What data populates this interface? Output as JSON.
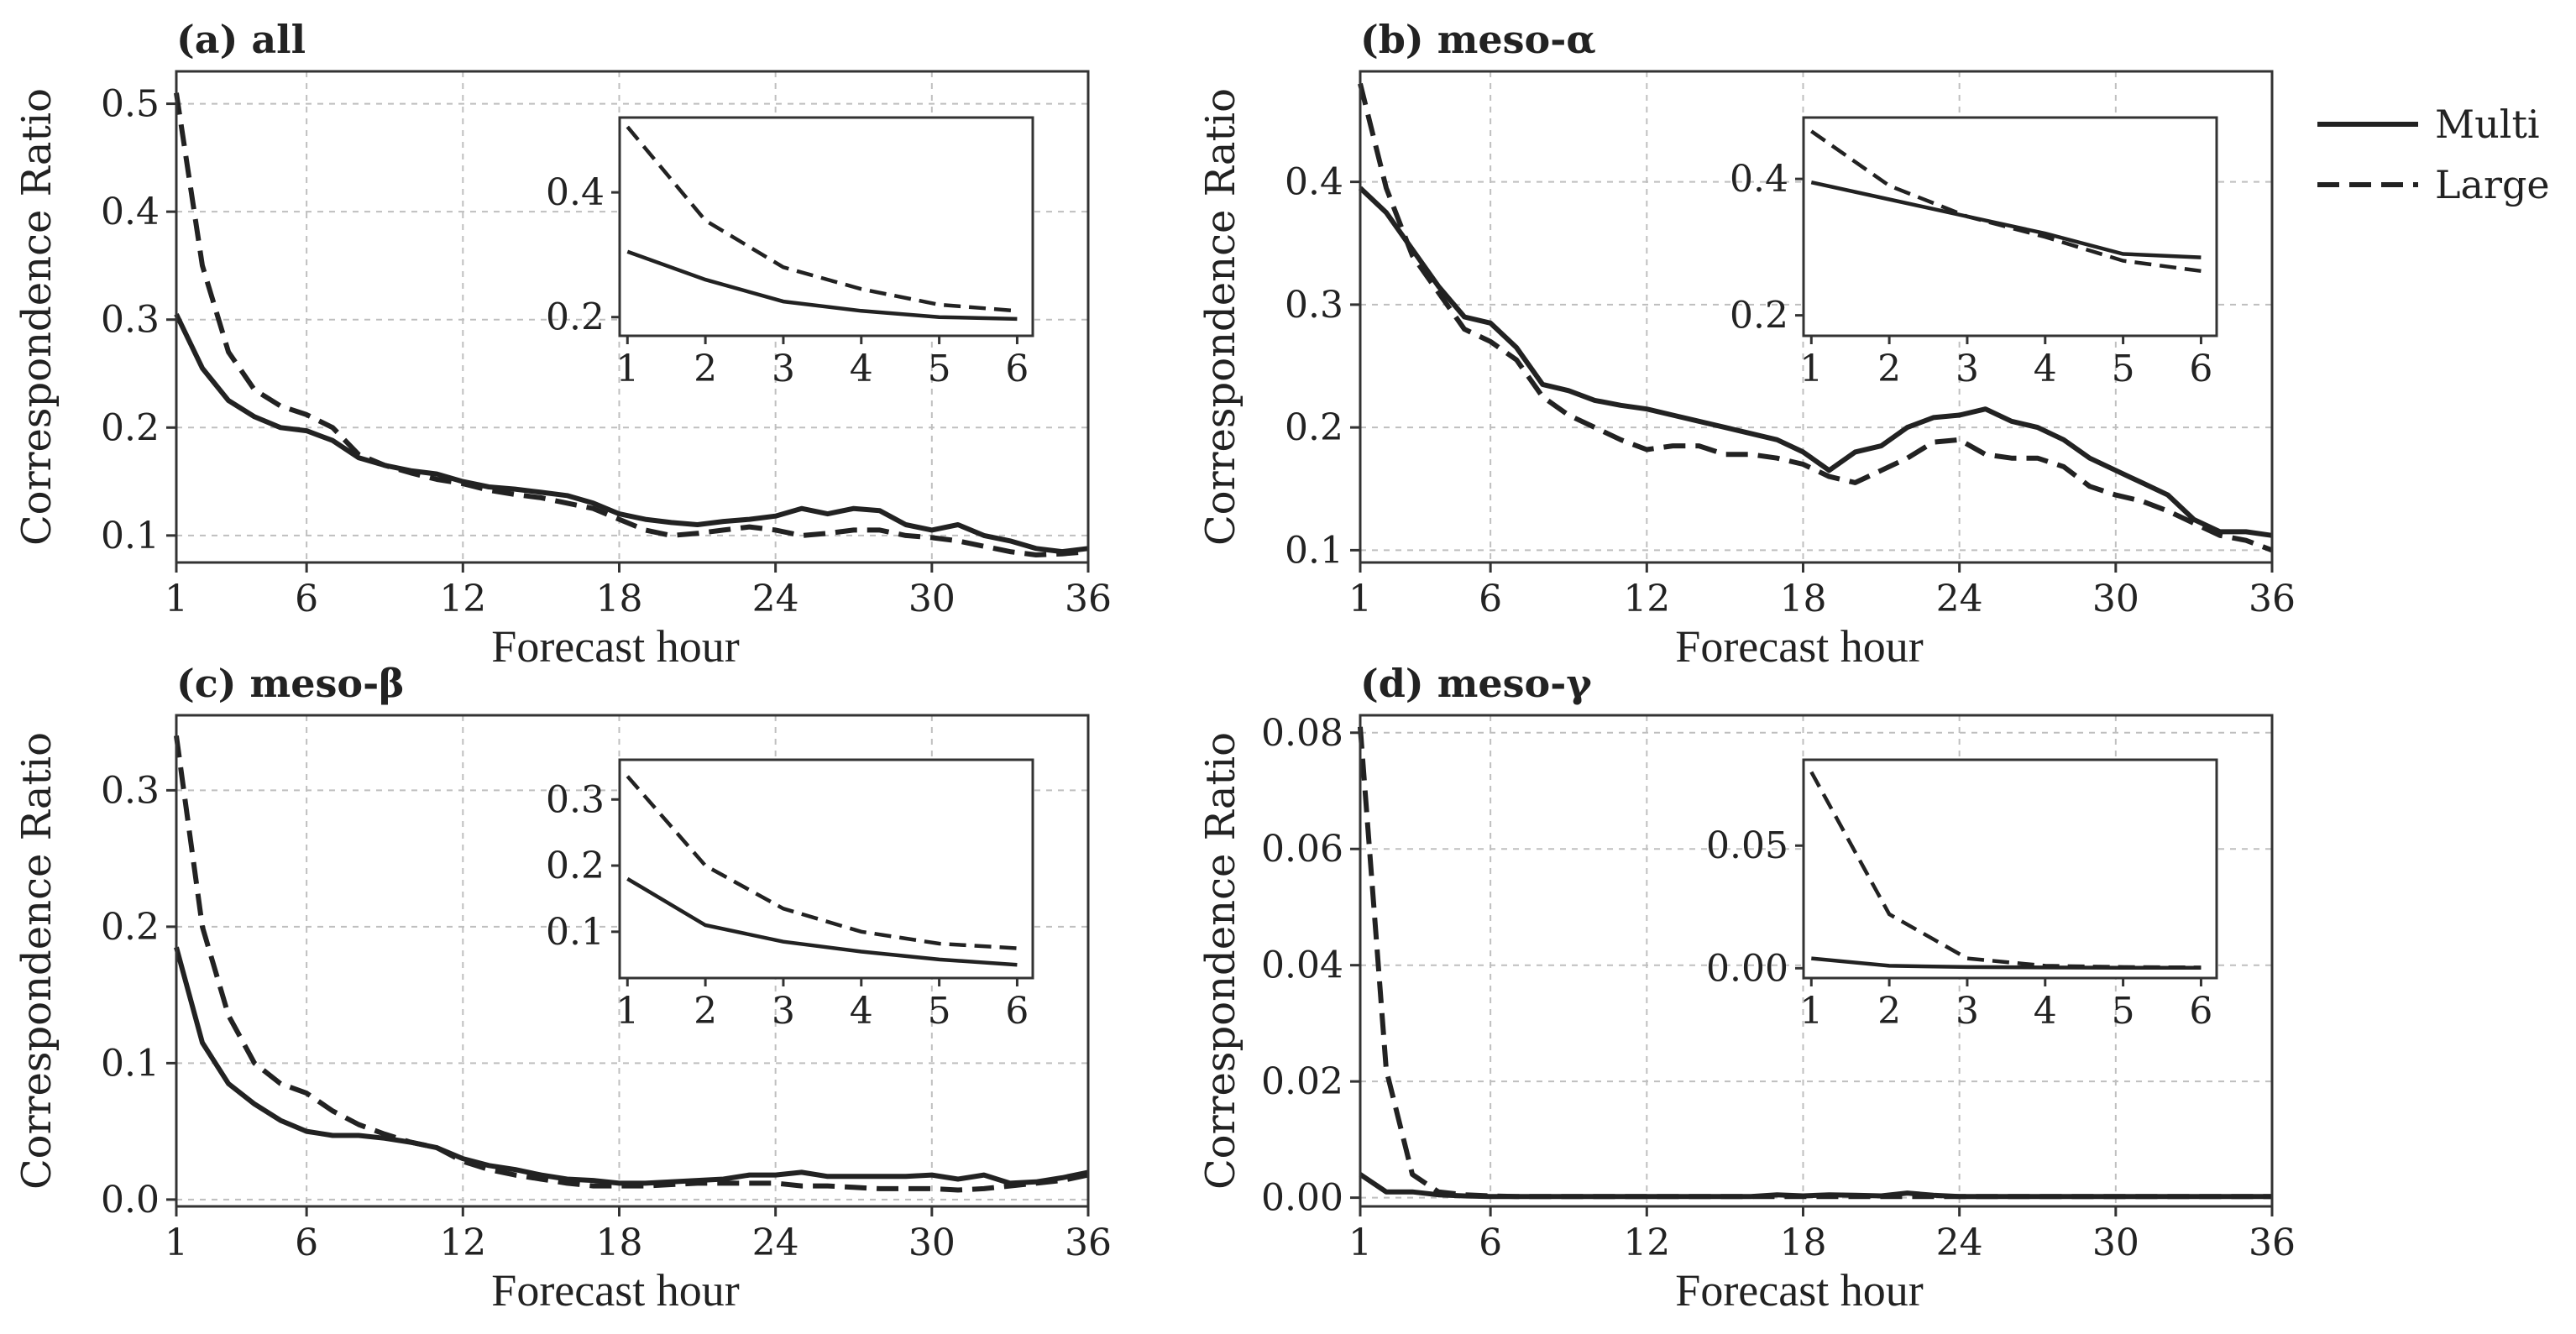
{
  "figure": {
    "legend": {
      "items": [
        {
          "name": "Multi",
          "style": "solid"
        },
        {
          "name": "Large",
          "style": "dashed"
        }
      ]
    },
    "line_color": "#222222",
    "grid_color": "#bfbfbf"
  },
  "chart_data": [
    {
      "type": "line",
      "title": "(a) all",
      "xlabel": "Forecast hour",
      "ylabel": "Correspondence Ratio",
      "xlim": [
        1,
        36
      ],
      "ylim": [
        0.075,
        0.53
      ],
      "xticks": [
        1,
        6,
        12,
        18,
        24,
        30,
        36
      ],
      "yticks": [
        0.1,
        0.2,
        0.3,
        0.4,
        0.5
      ],
      "ytick_labels": [
        "0.1",
        "0.2",
        "0.3",
        "0.4",
        "0.5"
      ],
      "grid": true,
      "x": [
        1,
        2,
        3,
        4,
        5,
        6,
        7,
        8,
        9,
        10,
        11,
        12,
        13,
        14,
        15,
        16,
        17,
        18,
        19,
        20,
        21,
        22,
        23,
        24,
        25,
        26,
        27,
        28,
        29,
        30,
        31,
        32,
        33,
        34,
        35,
        36
      ],
      "series": [
        {
          "name": "Multi",
          "values": [
            0.305,
            0.255,
            0.225,
            0.21,
            0.2,
            0.197,
            0.188,
            0.172,
            0.165,
            0.16,
            0.157,
            0.15,
            0.145,
            0.143,
            0.14,
            0.137,
            0.13,
            0.12,
            0.115,
            0.112,
            0.11,
            0.113,
            0.115,
            0.118,
            0.125,
            0.12,
            0.125,
            0.123,
            0.11,
            0.105,
            0.11,
            0.1,
            0.095,
            0.088,
            0.085,
            0.088
          ]
        },
        {
          "name": "Large",
          "values": [
            0.51,
            0.35,
            0.27,
            0.235,
            0.22,
            0.212,
            0.2,
            0.175,
            0.165,
            0.158,
            0.152,
            0.148,
            0.142,
            0.138,
            0.135,
            0.13,
            0.125,
            0.115,
            0.105,
            0.1,
            0.102,
            0.105,
            0.108,
            0.105,
            0.1,
            0.102,
            0.105,
            0.105,
            0.1,
            0.098,
            0.095,
            0.09,
            0.085,
            0.082,
            0.083,
            0.085
          ]
        }
      ],
      "inset": {
        "xlim": [
          0.9,
          6.2
        ],
        "ylim": [
          0.17,
          0.52
        ],
        "xticks": [
          1,
          2,
          3,
          4,
          5,
          6
        ],
        "yticks": [
          0.2,
          0.4
        ],
        "ytick_labels": [
          "0.2",
          "0.4"
        ],
        "x": [
          1,
          2,
          3,
          4,
          5,
          6
        ],
        "series": [
          {
            "name": "Multi",
            "values": [
              0.305,
              0.26,
              0.225,
              0.21,
              0.2,
              0.197
            ]
          },
          {
            "name": "Large",
            "values": [
              0.505,
              0.355,
              0.28,
              0.245,
              0.22,
              0.21
            ]
          }
        ]
      }
    },
    {
      "type": "line",
      "title": "(b) meso-α",
      "xlabel": "Forecast hour",
      "ylabel": "Correspondence Ratio",
      "xlim": [
        1,
        36
      ],
      "ylim": [
        0.09,
        0.49
      ],
      "xticks": [
        1,
        6,
        12,
        18,
        24,
        30,
        36
      ],
      "yticks": [
        0.1,
        0.2,
        0.3,
        0.4
      ],
      "ytick_labels": [
        "0.1",
        "0.2",
        "0.3",
        "0.4"
      ],
      "grid": true,
      "x": [
        1,
        2,
        3,
        4,
        5,
        6,
        7,
        8,
        9,
        10,
        11,
        12,
        13,
        14,
        15,
        16,
        17,
        18,
        19,
        20,
        21,
        22,
        23,
        24,
        25,
        26,
        27,
        28,
        29,
        30,
        31,
        32,
        33,
        34,
        35,
        36
      ],
      "series": [
        {
          "name": "Multi",
          "values": [
            0.395,
            0.375,
            0.345,
            0.315,
            0.29,
            0.285,
            0.265,
            0.235,
            0.23,
            0.222,
            0.218,
            0.215,
            0.21,
            0.205,
            0.2,
            0.195,
            0.19,
            0.18,
            0.165,
            0.18,
            0.185,
            0.2,
            0.208,
            0.21,
            0.215,
            0.205,
            0.2,
            0.19,
            0.175,
            0.165,
            0.155,
            0.145,
            0.125,
            0.115,
            0.115,
            0.112
          ]
        },
        {
          "name": "Large",
          "values": [
            0.48,
            0.395,
            0.34,
            0.31,
            0.28,
            0.27,
            0.255,
            0.225,
            0.21,
            0.2,
            0.19,
            0.182,
            0.185,
            0.185,
            0.178,
            0.178,
            0.175,
            0.17,
            0.16,
            0.155,
            0.165,
            0.175,
            0.188,
            0.19,
            0.178,
            0.175,
            0.175,
            0.168,
            0.152,
            0.145,
            0.14,
            0.132,
            0.122,
            0.112,
            0.108,
            0.1
          ]
        }
      ],
      "inset": {
        "xlim": [
          0.9,
          6.2
        ],
        "ylim": [
          0.17,
          0.49
        ],
        "xticks": [
          1,
          2,
          3,
          4,
          5,
          6
        ],
        "yticks": [
          0.2,
          0.4
        ],
        "ytick_labels": [
          "0.2",
          "0.4"
        ],
        "x": [
          1,
          2,
          3,
          4,
          5,
          6
        ],
        "series": [
          {
            "name": "Multi",
            "values": [
              0.395,
              0.37,
              0.345,
              0.32,
              0.29,
              0.285
            ]
          },
          {
            "name": "Large",
            "values": [
              0.47,
              0.39,
              0.345,
              0.315,
              0.28,
              0.265
            ]
          }
        ]
      }
    },
    {
      "type": "line",
      "title": "(c) meso-β",
      "xlabel": "Forecast hour",
      "ylabel": "Correspondence Ratio",
      "xlim": [
        1,
        36
      ],
      "ylim": [
        -0.005,
        0.355
      ],
      "xticks": [
        1,
        6,
        12,
        18,
        24,
        30,
        36
      ],
      "yticks": [
        0.0,
        0.1,
        0.2,
        0.3
      ],
      "ytick_labels": [
        "0.0",
        "0.1",
        "0.2",
        "0.3"
      ],
      "grid": true,
      "x": [
        1,
        2,
        3,
        4,
        5,
        6,
        7,
        8,
        9,
        10,
        11,
        12,
        13,
        14,
        15,
        16,
        17,
        18,
        19,
        20,
        21,
        22,
        23,
        24,
        25,
        26,
        27,
        28,
        29,
        30,
        31,
        32,
        33,
        34,
        35,
        36
      ],
      "series": [
        {
          "name": "Multi",
          "values": [
            0.185,
            0.115,
            0.085,
            0.07,
            0.058,
            0.05,
            0.047,
            0.047,
            0.045,
            0.042,
            0.038,
            0.03,
            0.025,
            0.022,
            0.018,
            0.015,
            0.014,
            0.012,
            0.012,
            0.013,
            0.014,
            0.015,
            0.018,
            0.018,
            0.02,
            0.017,
            0.017,
            0.017,
            0.017,
            0.018,
            0.015,
            0.018,
            0.012,
            0.013,
            0.016,
            0.02
          ]
        },
        {
          "name": "Large",
          "values": [
            0.34,
            0.2,
            0.135,
            0.1,
            0.085,
            0.078,
            0.065,
            0.055,
            0.048,
            0.042,
            0.038,
            0.028,
            0.022,
            0.018,
            0.015,
            0.012,
            0.01,
            0.01,
            0.01,
            0.011,
            0.012,
            0.012,
            0.012,
            0.012,
            0.01,
            0.01,
            0.009,
            0.008,
            0.008,
            0.008,
            0.007,
            0.008,
            0.01,
            0.012,
            0.014,
            0.018
          ]
        }
      ],
      "inset": {
        "xlim": [
          0.9,
          6.2
        ],
        "ylim": [
          0.03,
          0.36
        ],
        "xticks": [
          1,
          2,
          3,
          4,
          5,
          6
        ],
        "yticks": [
          0.1,
          0.2,
          0.3
        ],
        "ytick_labels": [
          "0.1",
          "0.2",
          "0.3"
        ],
        "x": [
          1,
          2,
          3,
          4,
          5,
          6
        ],
        "series": [
          {
            "name": "Multi",
            "values": [
              0.18,
              0.11,
              0.085,
              0.07,
              0.058,
              0.05
            ]
          },
          {
            "name": "Large",
            "values": [
              0.335,
              0.2,
              0.135,
              0.1,
              0.082,
              0.075
            ]
          }
        ]
      }
    },
    {
      "type": "line",
      "title": "(d) meso-γ",
      "xlabel": "Forecast hour",
      "ylabel": "Correspondence Ratio",
      "xlim": [
        1,
        36
      ],
      "ylim": [
        -0.0015,
        0.083
      ],
      "xticks": [
        1,
        6,
        12,
        18,
        24,
        30,
        36
      ],
      "yticks": [
        0.0,
        0.02,
        0.04,
        0.06,
        0.08
      ],
      "ytick_labels": [
        "0.00",
        "0.02",
        "0.04",
        "0.06",
        "0.08"
      ],
      "grid": true,
      "x": [
        1,
        2,
        3,
        4,
        5,
        6,
        7,
        8,
        9,
        10,
        11,
        12,
        13,
        14,
        15,
        16,
        17,
        18,
        19,
        20,
        21,
        22,
        23,
        24,
        25,
        26,
        27,
        28,
        29,
        30,
        31,
        32,
        33,
        34,
        35,
        36
      ],
      "series": [
        {
          "name": "Multi",
          "values": [
            0.004,
            0.001,
            0.001,
            0.0005,
            0.0003,
            0.0002,
            0.0002,
            0.0002,
            0.0002,
            0.0002,
            0.0002,
            0.0002,
            0.0002,
            0.0002,
            0.0002,
            0.0002,
            0.0005,
            0.0003,
            0.0005,
            0.0004,
            0.0003,
            0.0008,
            0.0004,
            0.0002,
            0.0002,
            0.0002,
            0.0002,
            0.0002,
            0.0002,
            0.0002,
            0.0002,
            0.0002,
            0.0002,
            0.0002,
            0.0002,
            0.0002
          ]
        },
        {
          "name": "Large",
          "values": [
            0.081,
            0.022,
            0.004,
            0.001,
            0.0005,
            0.0003,
            0.0002,
            0.0002,
            0.0002,
            0.0002,
            0.0002,
            0.0002,
            0.0002,
            0.0002,
            0.0002,
            0.0002,
            0.0002,
            0.0002,
            0.0002,
            0.0002,
            0.0002,
            0.0002,
            0.0002,
            0.0002,
            0.0002,
            0.0002,
            0.0002,
            0.0002,
            0.0002,
            0.0002,
            0.0002,
            0.0002,
            0.0002,
            0.0002,
            0.0002,
            0.0002
          ]
        }
      ],
      "inset": {
        "xlim": [
          0.9,
          6.2
        ],
        "ylim": [
          -0.004,
          0.085
        ],
        "xticks": [
          1,
          2,
          3,
          4,
          5,
          6
        ],
        "yticks": [
          0.0,
          0.05
        ],
        "ytick_labels": [
          "0.00",
          "0.05"
        ],
        "x": [
          1,
          2,
          3,
          4,
          5,
          6
        ],
        "series": [
          {
            "name": "Multi",
            "values": [
              0.004,
              0.001,
              0.0005,
              0.0003,
              0.0002,
              0.0002
            ]
          },
          {
            "name": "Large",
            "values": [
              0.08,
              0.022,
              0.004,
              0.001,
              0.0005,
              0.0003
            ]
          }
        ]
      }
    }
  ]
}
